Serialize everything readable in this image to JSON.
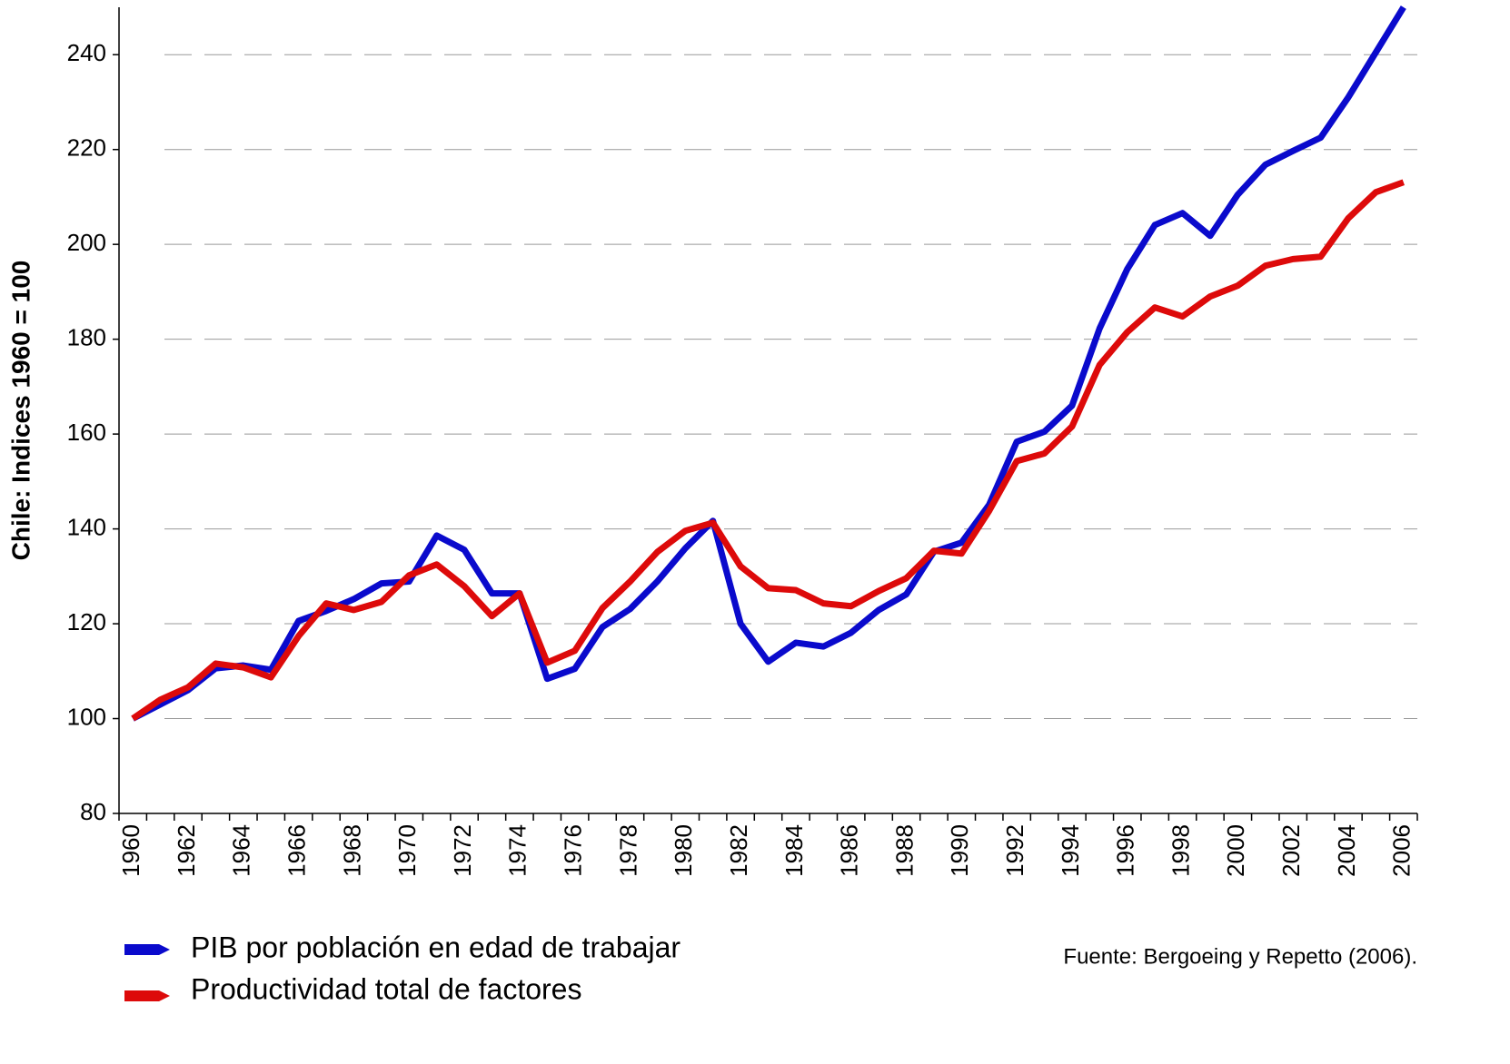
{
  "chart_data": {
    "type": "line",
    "ylabel": "Chile: Indices 1960 = 100",
    "source": "Fuente: Bergoeing y Repetto (2006).",
    "categories": [
      "1960",
      null,
      "1962",
      null,
      "1964",
      null,
      "1966",
      null,
      "1968",
      null,
      "1970",
      null,
      "1972",
      null,
      "1974",
      null,
      "1976",
      null,
      "1978",
      null,
      "1980",
      null,
      "1982",
      null,
      "1984",
      null,
      "1986",
      null,
      "1988",
      null,
      "1990",
      null,
      "1992",
      null,
      "1994",
      null,
      "1996",
      null,
      "1998",
      null,
      "2000",
      null,
      "2002",
      null,
      "2004",
      null,
      "2006"
    ],
    "series": [
      {
        "name": "PIB por población en edad de trabajar",
        "color": "#0a0acc",
        "values": [
          100,
          103,
          106,
          110.6,
          111.2,
          110.3,
          120.6,
          122.7,
          125.2,
          128.5,
          128.9,
          138.6,
          135.6,
          126.4,
          126.4,
          108.4,
          110.5,
          119.3,
          123.1,
          129,
          135.9,
          141.7,
          120,
          112,
          116,
          115.2,
          118.1,
          122.9,
          126.2,
          135.2,
          137.1,
          145.1,
          158.4,
          160.5,
          166,
          182.3,
          194.8,
          204.1,
          206.6,
          201.8,
          210.5,
          216.8,
          219.7,
          222.5,
          231,
          240.5,
          250
        ]
      },
      {
        "name": "Productividad total de factores",
        "color": "#dd0a0a",
        "values": [
          100,
          104,
          106.6,
          111.6,
          110.8,
          108.7,
          117.4,
          124.3,
          122.9,
          124.6,
          130.2,
          132.5,
          127.9,
          121.6,
          126.4,
          111.8,
          114.3,
          123.3,
          128.9,
          135.2,
          139.6,
          141.3,
          132.1,
          127.5,
          127.1,
          124.3,
          123.7,
          126.9,
          129.6,
          135.4,
          134.8,
          143.8,
          154.3,
          155.9,
          161.6,
          174.6,
          181.5,
          186.7,
          184.8,
          189,
          191.3,
          195.5,
          196.9,
          197.4,
          205.5,
          211,
          213.1
        ]
      }
    ],
    "ylim": [
      80,
      250
    ],
    "yticks": [
      80,
      100,
      120,
      140,
      160,
      180,
      200,
      220,
      240
    ],
    "grid": true
  }
}
